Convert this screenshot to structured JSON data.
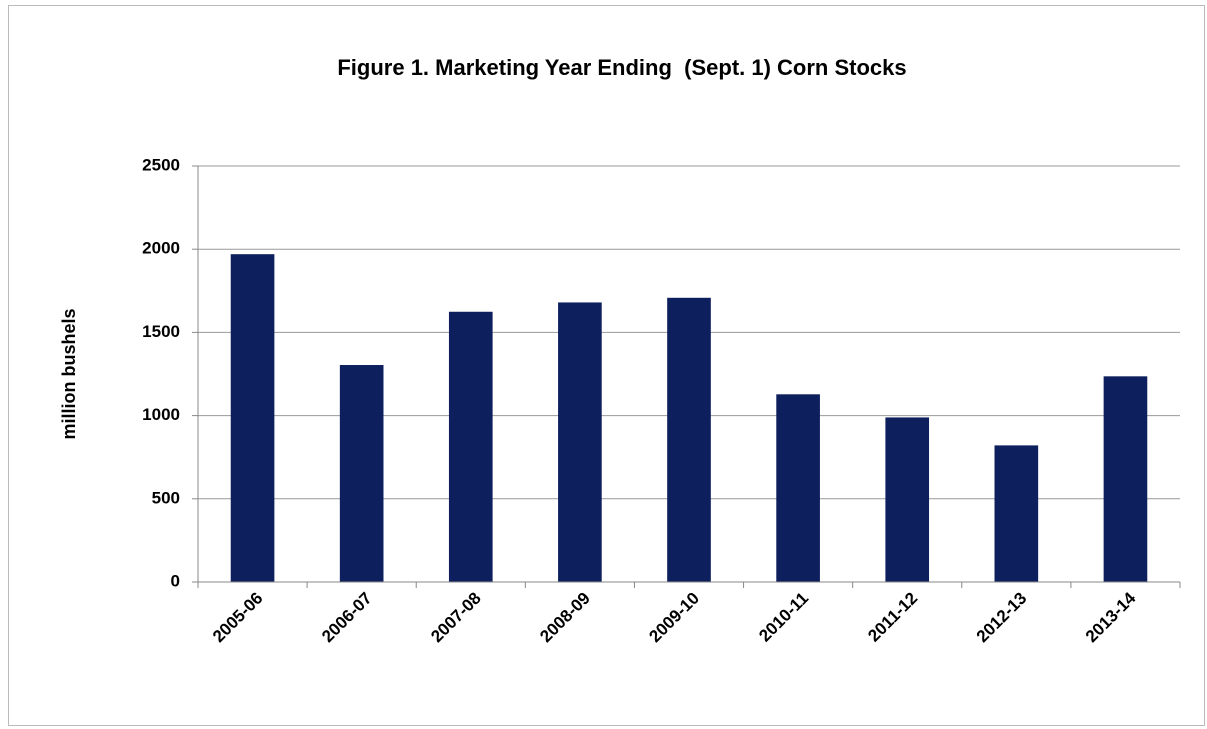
{
  "chart_data": {
    "type": "bar",
    "title": "Figure 1. Marketing Year Ending  (Sept. 1) Corn Stocks",
    "y_label": "million bushels",
    "categories": [
      "2005-06",
      "2006-07",
      "2007-08",
      "2008-09",
      "2009-10",
      "2010-11",
      "2011-12",
      "2012-13",
      "2013-14"
    ],
    "values": [
      1970,
      1304,
      1624,
      1680,
      1708,
      1128,
      989,
      821,
      1236
    ],
    "color": "#0d1f5c",
    "ylim": [
      0,
      2500
    ],
    "yticks": [
      0,
      500,
      1000,
      1500,
      2000,
      2500
    ],
    "grid": true
  }
}
